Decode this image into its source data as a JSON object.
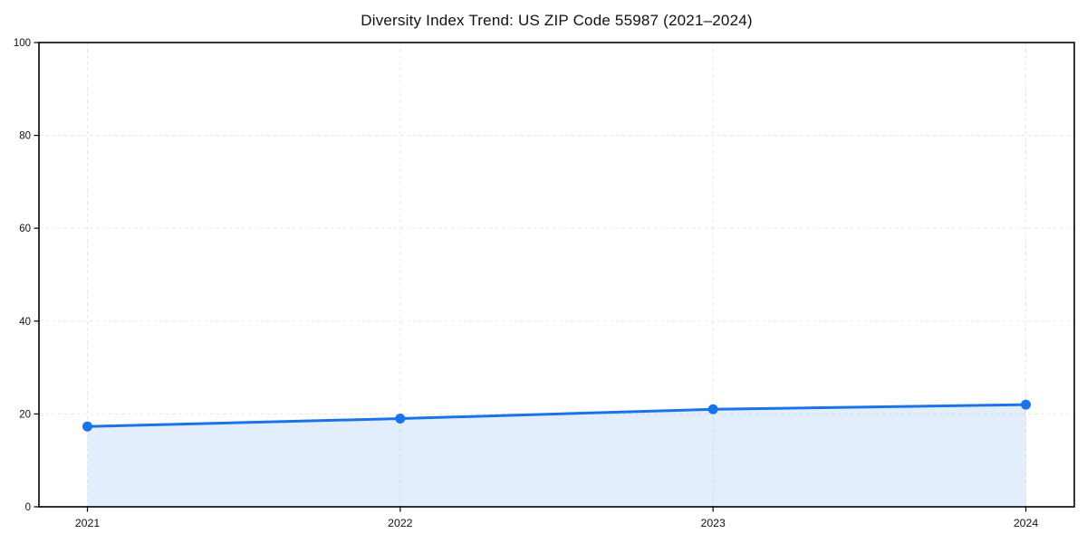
{
  "title": "Diversity Index Trend: US ZIP Code 55987 (2021–2024)",
  "colors": {
    "line": "#1a73e8",
    "marker": "#1a73e8",
    "area_fill": "rgba(26,115,232,0.12)",
    "grid": "#e5e5e5",
    "axis": "#000000",
    "tick_text": "#111111",
    "background": "#ffffff"
  },
  "chart_data": {
    "type": "line",
    "title": "Diversity Index Trend: US ZIP Code 55987 (2021–2024)",
    "categories": [
      "2021",
      "2022",
      "2023",
      "2024"
    ],
    "series": [
      {
        "name": "Diversity Index",
        "values": [
          17.3,
          19.0,
          21.0,
          22.0
        ]
      }
    ],
    "xlabel": "",
    "ylabel": "",
    "ylim": [
      0,
      100
    ],
    "yticks": [
      0,
      20,
      40,
      60,
      80,
      100
    ],
    "grid": "on",
    "grid_style": "dashed",
    "legend_position": "none",
    "area_fill": true,
    "markers": true
  }
}
